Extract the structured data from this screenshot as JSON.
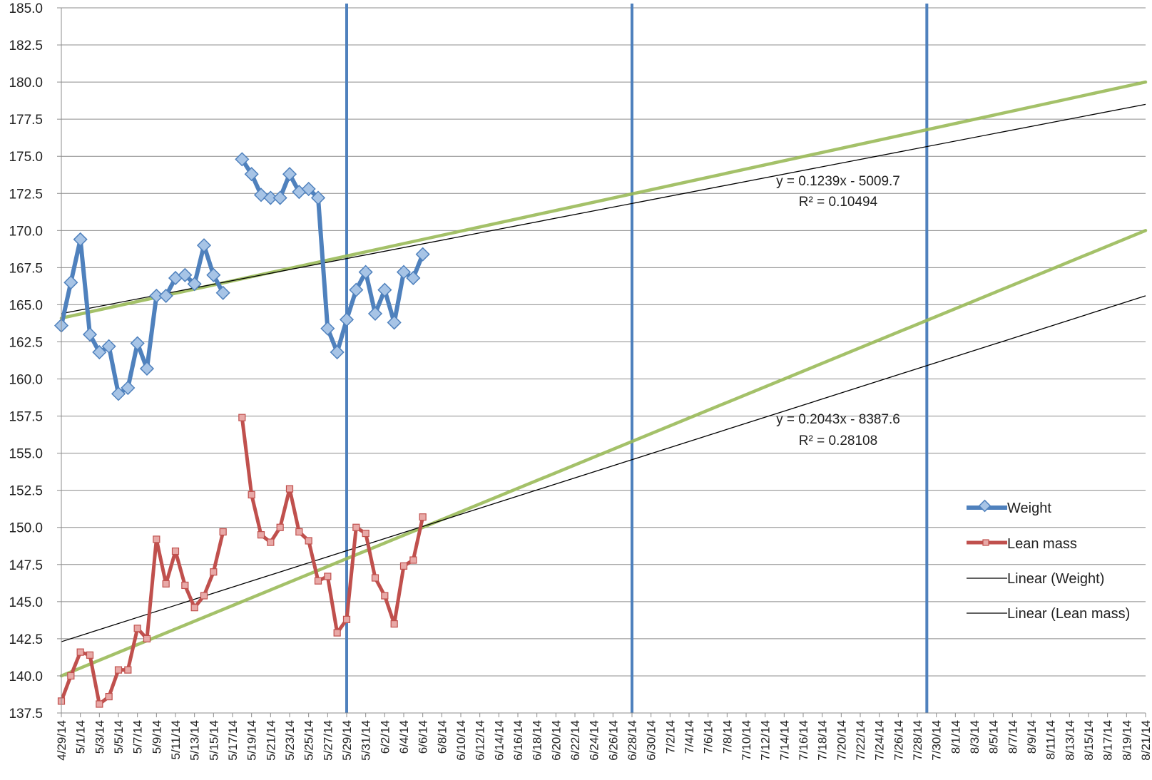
{
  "chart_data": {
    "type": "line",
    "x_axis": {
      "type": "date",
      "start": "2014-04-29",
      "end": "2014-08-21",
      "tick_step_days": 2,
      "tick_labels": [
        "4/29/14",
        "5/1/14",
        "5/3/14",
        "5/5/14",
        "5/7/14",
        "5/9/14",
        "5/11/14",
        "5/13/14",
        "5/15/14",
        "5/17/14",
        "5/19/14",
        "5/21/14",
        "5/23/14",
        "5/25/14",
        "5/27/14",
        "5/29/14",
        "5/31/14",
        "6/2/14",
        "6/4/14",
        "6/6/14",
        "6/8/14",
        "6/10/14",
        "6/12/14",
        "6/14/14",
        "6/16/14",
        "6/18/14",
        "6/20/14",
        "6/22/14",
        "6/24/14",
        "6/26/14",
        "6/28/14",
        "6/30/14",
        "7/2/14",
        "7/4/14",
        "7/6/14",
        "7/8/14",
        "7/10/14",
        "7/12/14",
        "7/14/14",
        "7/16/14",
        "7/18/14",
        "7/20/14",
        "7/22/14",
        "7/24/14",
        "7/26/14",
        "7/28/14",
        "7/30/14",
        "8/1/14",
        "8/3/14",
        "8/5/14",
        "8/7/14",
        "8/9/14",
        "8/11/14",
        "8/13/14",
        "8/15/14",
        "8/17/14",
        "8/19/14",
        "8/21/14"
      ]
    },
    "y_axis": {
      "min": 137.5,
      "max": 185.0,
      "step": 2.5,
      "tick_labels": [
        "137.5",
        "140.0",
        "142.5",
        "145.0",
        "147.5",
        "150.0",
        "152.5",
        "155.0",
        "157.5",
        "160.0",
        "162.5",
        "165.0",
        "167.5",
        "170.0",
        "172.5",
        "175.0",
        "177.5",
        "180.0",
        "182.5",
        "185.0"
      ]
    },
    "grid": "horizontal",
    "legend_position": "right",
    "series": [
      {
        "name": "Weight",
        "color": "#4f81bd",
        "marker": "diamond",
        "segments": [
          [
            {
              "x": "2014-04-29",
              "y": 163.6
            },
            {
              "x": "2014-04-30",
              "y": 166.5
            },
            {
              "x": "2014-05-01",
              "y": 169.4
            },
            {
              "x": "2014-05-02",
              "y": 163.0
            },
            {
              "x": "2014-05-03",
              "y": 161.8
            },
            {
              "x": "2014-05-04",
              "y": 162.2
            },
            {
              "x": "2014-05-05",
              "y": 159.0
            },
            {
              "x": "2014-05-06",
              "y": 159.4
            },
            {
              "x": "2014-05-07",
              "y": 162.4
            },
            {
              "x": "2014-05-08",
              "y": 160.7
            },
            {
              "x": "2014-05-09",
              "y": 165.6
            },
            {
              "x": "2014-05-10",
              "y": 165.6
            },
            {
              "x": "2014-05-11",
              "y": 166.8
            },
            {
              "x": "2014-05-12",
              "y": 167.0
            },
            {
              "x": "2014-05-13",
              "y": 166.4
            },
            {
              "x": "2014-05-14",
              "y": 169.0
            },
            {
              "x": "2014-05-15",
              "y": 167.0
            },
            {
              "x": "2014-05-16",
              "y": 165.8
            }
          ],
          [
            {
              "x": "2014-05-18",
              "y": 174.8
            },
            {
              "x": "2014-05-19",
              "y": 173.8
            },
            {
              "x": "2014-05-20",
              "y": 172.4
            },
            {
              "x": "2014-05-21",
              "y": 172.2
            },
            {
              "x": "2014-05-22",
              "y": 172.2
            },
            {
              "x": "2014-05-23",
              "y": 173.8
            },
            {
              "x": "2014-05-24",
              "y": 172.6
            },
            {
              "x": "2014-05-25",
              "y": 172.8
            },
            {
              "x": "2014-05-26",
              "y": 172.2
            },
            {
              "x": "2014-05-27",
              "y": 163.4
            },
            {
              "x": "2014-05-28",
              "y": 161.8
            },
            {
              "x": "2014-05-29",
              "y": 164.0
            },
            {
              "x": "2014-05-30",
              "y": 166.0
            },
            {
              "x": "2014-05-31",
              "y": 167.2
            },
            {
              "x": "2014-06-01",
              "y": 164.4
            },
            {
              "x": "2014-06-02",
              "y": 166.0
            },
            {
              "x": "2014-06-03",
              "y": 163.8
            },
            {
              "x": "2014-06-04",
              "y": 167.2
            },
            {
              "x": "2014-06-05",
              "y": 166.8
            },
            {
              "x": "2014-06-06",
              "y": 168.4
            }
          ]
        ]
      },
      {
        "name": "Lean mass",
        "color": "#c0504d",
        "marker": "square",
        "segments": [
          [
            {
              "x": "2014-04-29",
              "y": 138.3
            },
            {
              "x": "2014-04-30",
              "y": 140.0
            },
            {
              "x": "2014-05-01",
              "y": 141.6
            },
            {
              "x": "2014-05-02",
              "y": 141.4
            },
            {
              "x": "2014-05-03",
              "y": 138.1
            },
            {
              "x": "2014-05-04",
              "y": 138.6
            },
            {
              "x": "2014-05-05",
              "y": 140.4
            },
            {
              "x": "2014-05-06",
              "y": 140.4
            },
            {
              "x": "2014-05-07",
              "y": 143.2
            },
            {
              "x": "2014-05-08",
              "y": 142.5
            },
            {
              "x": "2014-05-09",
              "y": 149.2
            },
            {
              "x": "2014-05-10",
              "y": 146.2
            },
            {
              "x": "2014-05-11",
              "y": 148.4
            },
            {
              "x": "2014-05-12",
              "y": 146.1
            },
            {
              "x": "2014-05-13",
              "y": 144.6
            },
            {
              "x": "2014-05-14",
              "y": 145.4
            },
            {
              "x": "2014-05-15",
              "y": 147.0
            },
            {
              "x": "2014-05-16",
              "y": 149.7
            }
          ],
          [
            {
              "x": "2014-05-18",
              "y": 157.4
            },
            {
              "x": "2014-05-19",
              "y": 152.2
            },
            {
              "x": "2014-05-20",
              "y": 149.5
            },
            {
              "x": "2014-05-21",
              "y": 149.0
            },
            {
              "x": "2014-05-22",
              "y": 150.0
            },
            {
              "x": "2014-05-23",
              "y": 152.6
            },
            {
              "x": "2014-05-24",
              "y": 149.7
            },
            {
              "x": "2014-05-25",
              "y": 149.1
            },
            {
              "x": "2014-05-26",
              "y": 146.4
            },
            {
              "x": "2014-05-27",
              "y": 146.7
            },
            {
              "x": "2014-05-28",
              "y": 142.9
            },
            {
              "x": "2014-05-29",
              "y": 143.8
            },
            {
              "x": "2014-05-30",
              "y": 150.0
            },
            {
              "x": "2014-05-31",
              "y": 149.6
            },
            {
              "x": "2014-06-01",
              "y": 146.6
            },
            {
              "x": "2014-06-02",
              "y": 145.4
            },
            {
              "x": "2014-06-03",
              "y": 143.5
            },
            {
              "x": "2014-06-04",
              "y": 147.4
            },
            {
              "x": "2014-06-05",
              "y": 147.8
            },
            {
              "x": "2014-06-06",
              "y": 150.7
            }
          ]
        ]
      }
    ],
    "trendlines": [
      {
        "name": "Linear (Weight)",
        "color": "#000000",
        "start": {
          "x": "2014-04-29",
          "y": 164.4
        },
        "end": {
          "x": "2014-08-21",
          "y": 178.5
        },
        "equation": "y = 0.1239x - 5009.7",
        "r2": "R² = 0.10494"
      },
      {
        "name": "Linear (Lean mass)",
        "color": "#000000",
        "start": {
          "x": "2014-04-29",
          "y": 142.3
        },
        "end": {
          "x": "2014-08-21",
          "y": 165.6
        },
        "equation": "y = 0.2043x - 8387.6",
        "r2": "R² = 0.28108"
      }
    ],
    "overlay_lines": [
      {
        "color": "#9bbb59",
        "start": {
          "x": "2014-04-29",
          "y": 164.1
        },
        "end": {
          "x": "2014-08-21",
          "y": 180.0
        }
      },
      {
        "color": "#9bbb59",
        "start": {
          "x": "2014-04-29",
          "y": 140.0
        },
        "end": {
          "x": "2014-08-21",
          "y": 170.0
        }
      }
    ],
    "vertical_markers": {
      "color": "#4f81bd",
      "dates": [
        "2014-05-29",
        "2014-06-28",
        "2014-07-29"
      ]
    },
    "legend": [
      "Weight",
      "Lean mass",
      "Linear (Weight)",
      "Linear (Lean mass)"
    ]
  }
}
